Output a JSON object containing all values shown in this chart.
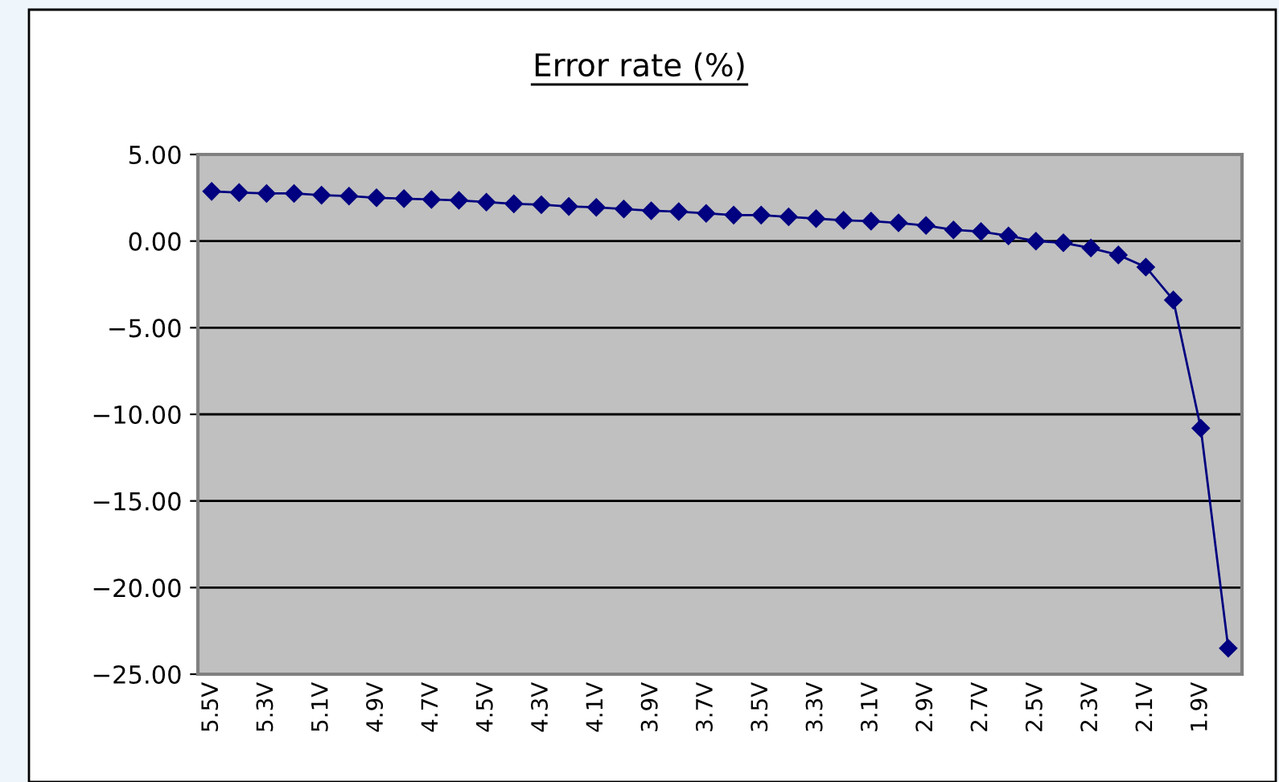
{
  "chart_data": {
    "type": "line",
    "title": "Error rate (%)",
    "categories": [
      "5.5V",
      null,
      "5.3V",
      null,
      "5.1V",
      null,
      "4.9V",
      null,
      "4.7V",
      null,
      "4.5V",
      null,
      "4.3V",
      null,
      "4.1V",
      null,
      "3.9V",
      null,
      "3.7V",
      null,
      "3.5V",
      null,
      "3.3V",
      null,
      "3.1V",
      null,
      "2.9V",
      null,
      "2.7V",
      null,
      "2.5V",
      null,
      "2.3V",
      null,
      "2.1V",
      null,
      "1.9V",
      null
    ],
    "series": [
      {
        "color": "#000080",
        "values": [
          2.87,
          2.8,
          2.75,
          2.75,
          2.65,
          2.6,
          2.5,
          2.45,
          2.4,
          2.35,
          2.25,
          2.15,
          2.1,
          2.0,
          1.95,
          1.85,
          1.75,
          1.7,
          1.6,
          1.5,
          1.5,
          1.4,
          1.3,
          1.2,
          1.15,
          1.05,
          0.9,
          0.65,
          0.55,
          0.3,
          0.0,
          -0.1,
          -0.4,
          -0.8,
          -1.5,
          -3.4,
          -10.8,
          -23.5
        ]
      }
    ],
    "ylim": [
      -25,
      5
    ],
    "yticks": [
      {
        "value": 5,
        "label": "5.00"
      },
      {
        "value": 0,
        "label": "0.00"
      },
      {
        "value": -5,
        "label": "−5.00"
      },
      {
        "value": -10,
        "label": "−10.00"
      },
      {
        "value": -15,
        "label": "−15.00"
      },
      {
        "value": -20,
        "label": "−20.00"
      },
      {
        "value": -25,
        "label": "−25.00"
      }
    ],
    "grid": "y",
    "marker": "diamond",
    "line_style": "solid",
    "legend": false
  }
}
